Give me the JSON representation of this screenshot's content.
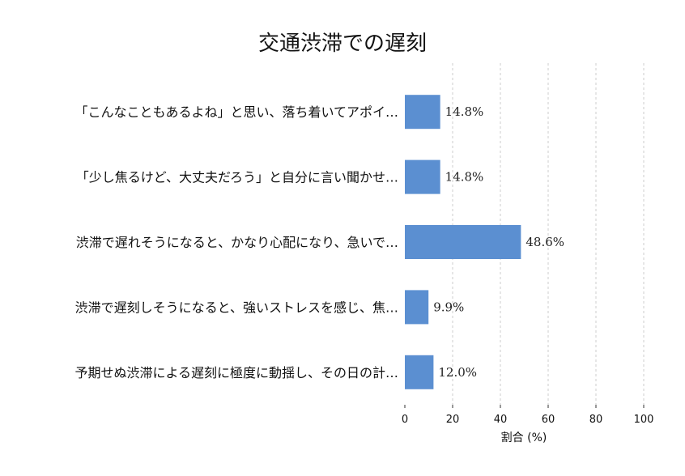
{
  "chart_data": {
    "type": "bar",
    "orientation": "horizontal",
    "title": "交通渋滞での遅刻",
    "xlabel": "割合 (%)",
    "ylabel": "",
    "xlim": [
      0,
      100
    ],
    "xticks": [
      "0",
      "20",
      "40",
      "60",
      "80",
      "100"
    ],
    "grid": true,
    "categories": [
      "「こんなこともあるよね」と思い、落ち着いてアポイ…",
      "「少し焦るけど、大丈夫だろう」と自分に言い聞かせ…",
      "渋滞で遅れそうになると、かなり心配になり、急いで…",
      "渋滞で遅刻しそうになると、強いストレスを感じ、焦…",
      "予期せぬ渋滞による遅刻に極度に動揺し、その日の計…"
    ],
    "values": [
      14.8,
      14.8,
      48.6,
      9.9,
      12.0
    ],
    "value_labels": [
      "14.8%",
      "14.8%",
      "48.6%",
      "9.9%",
      "12.0%"
    ],
    "bar_color": "#5b8fd1"
  }
}
